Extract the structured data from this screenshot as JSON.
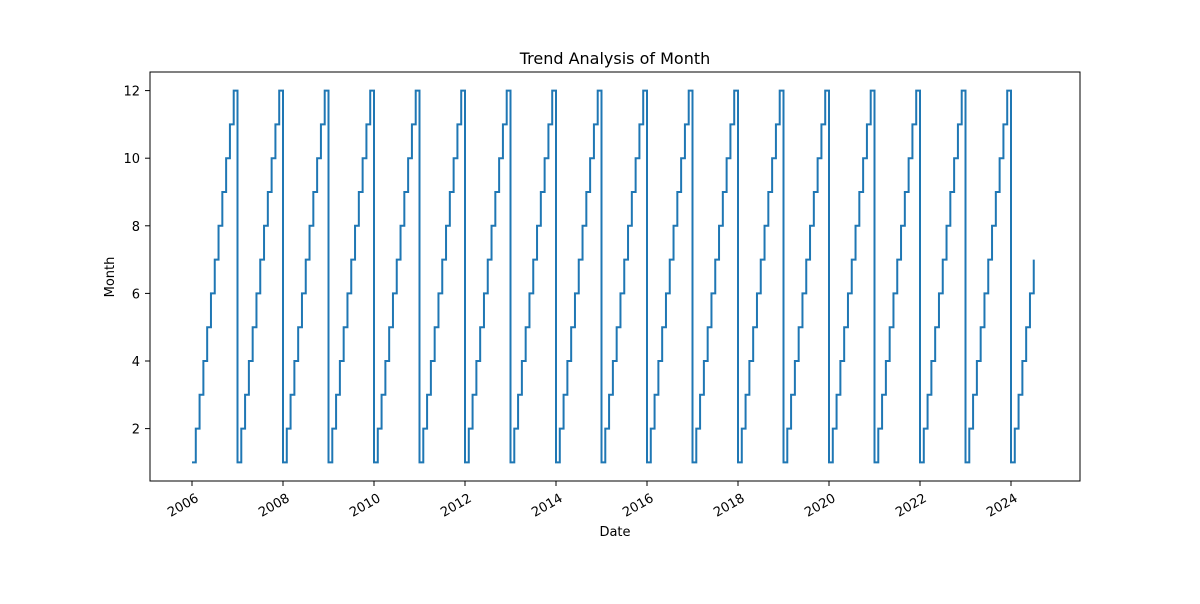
{
  "chart_data": {
    "type": "line",
    "title": "Trend Analysis of Month",
    "xlabel": "Date",
    "ylabel": "Month",
    "xlim": [
      "2005-01-01",
      "2025-06-01"
    ],
    "ylim": [
      0.45,
      12.55
    ],
    "x_ticks": [
      "2006",
      "2008",
      "2010",
      "2012",
      "2014",
      "2016",
      "2018",
      "2020",
      "2022",
      "2024"
    ],
    "y_ticks": [
      2,
      4,
      6,
      8,
      10,
      12
    ],
    "grid": false,
    "legend": "none",
    "series": [
      {
        "color": "#1f77b4",
        "step": "month-start",
        "start": "2006-01",
        "end": "2024-07",
        "pattern": "month number of each date, 1 to 12 repeating"
      }
    ]
  }
}
